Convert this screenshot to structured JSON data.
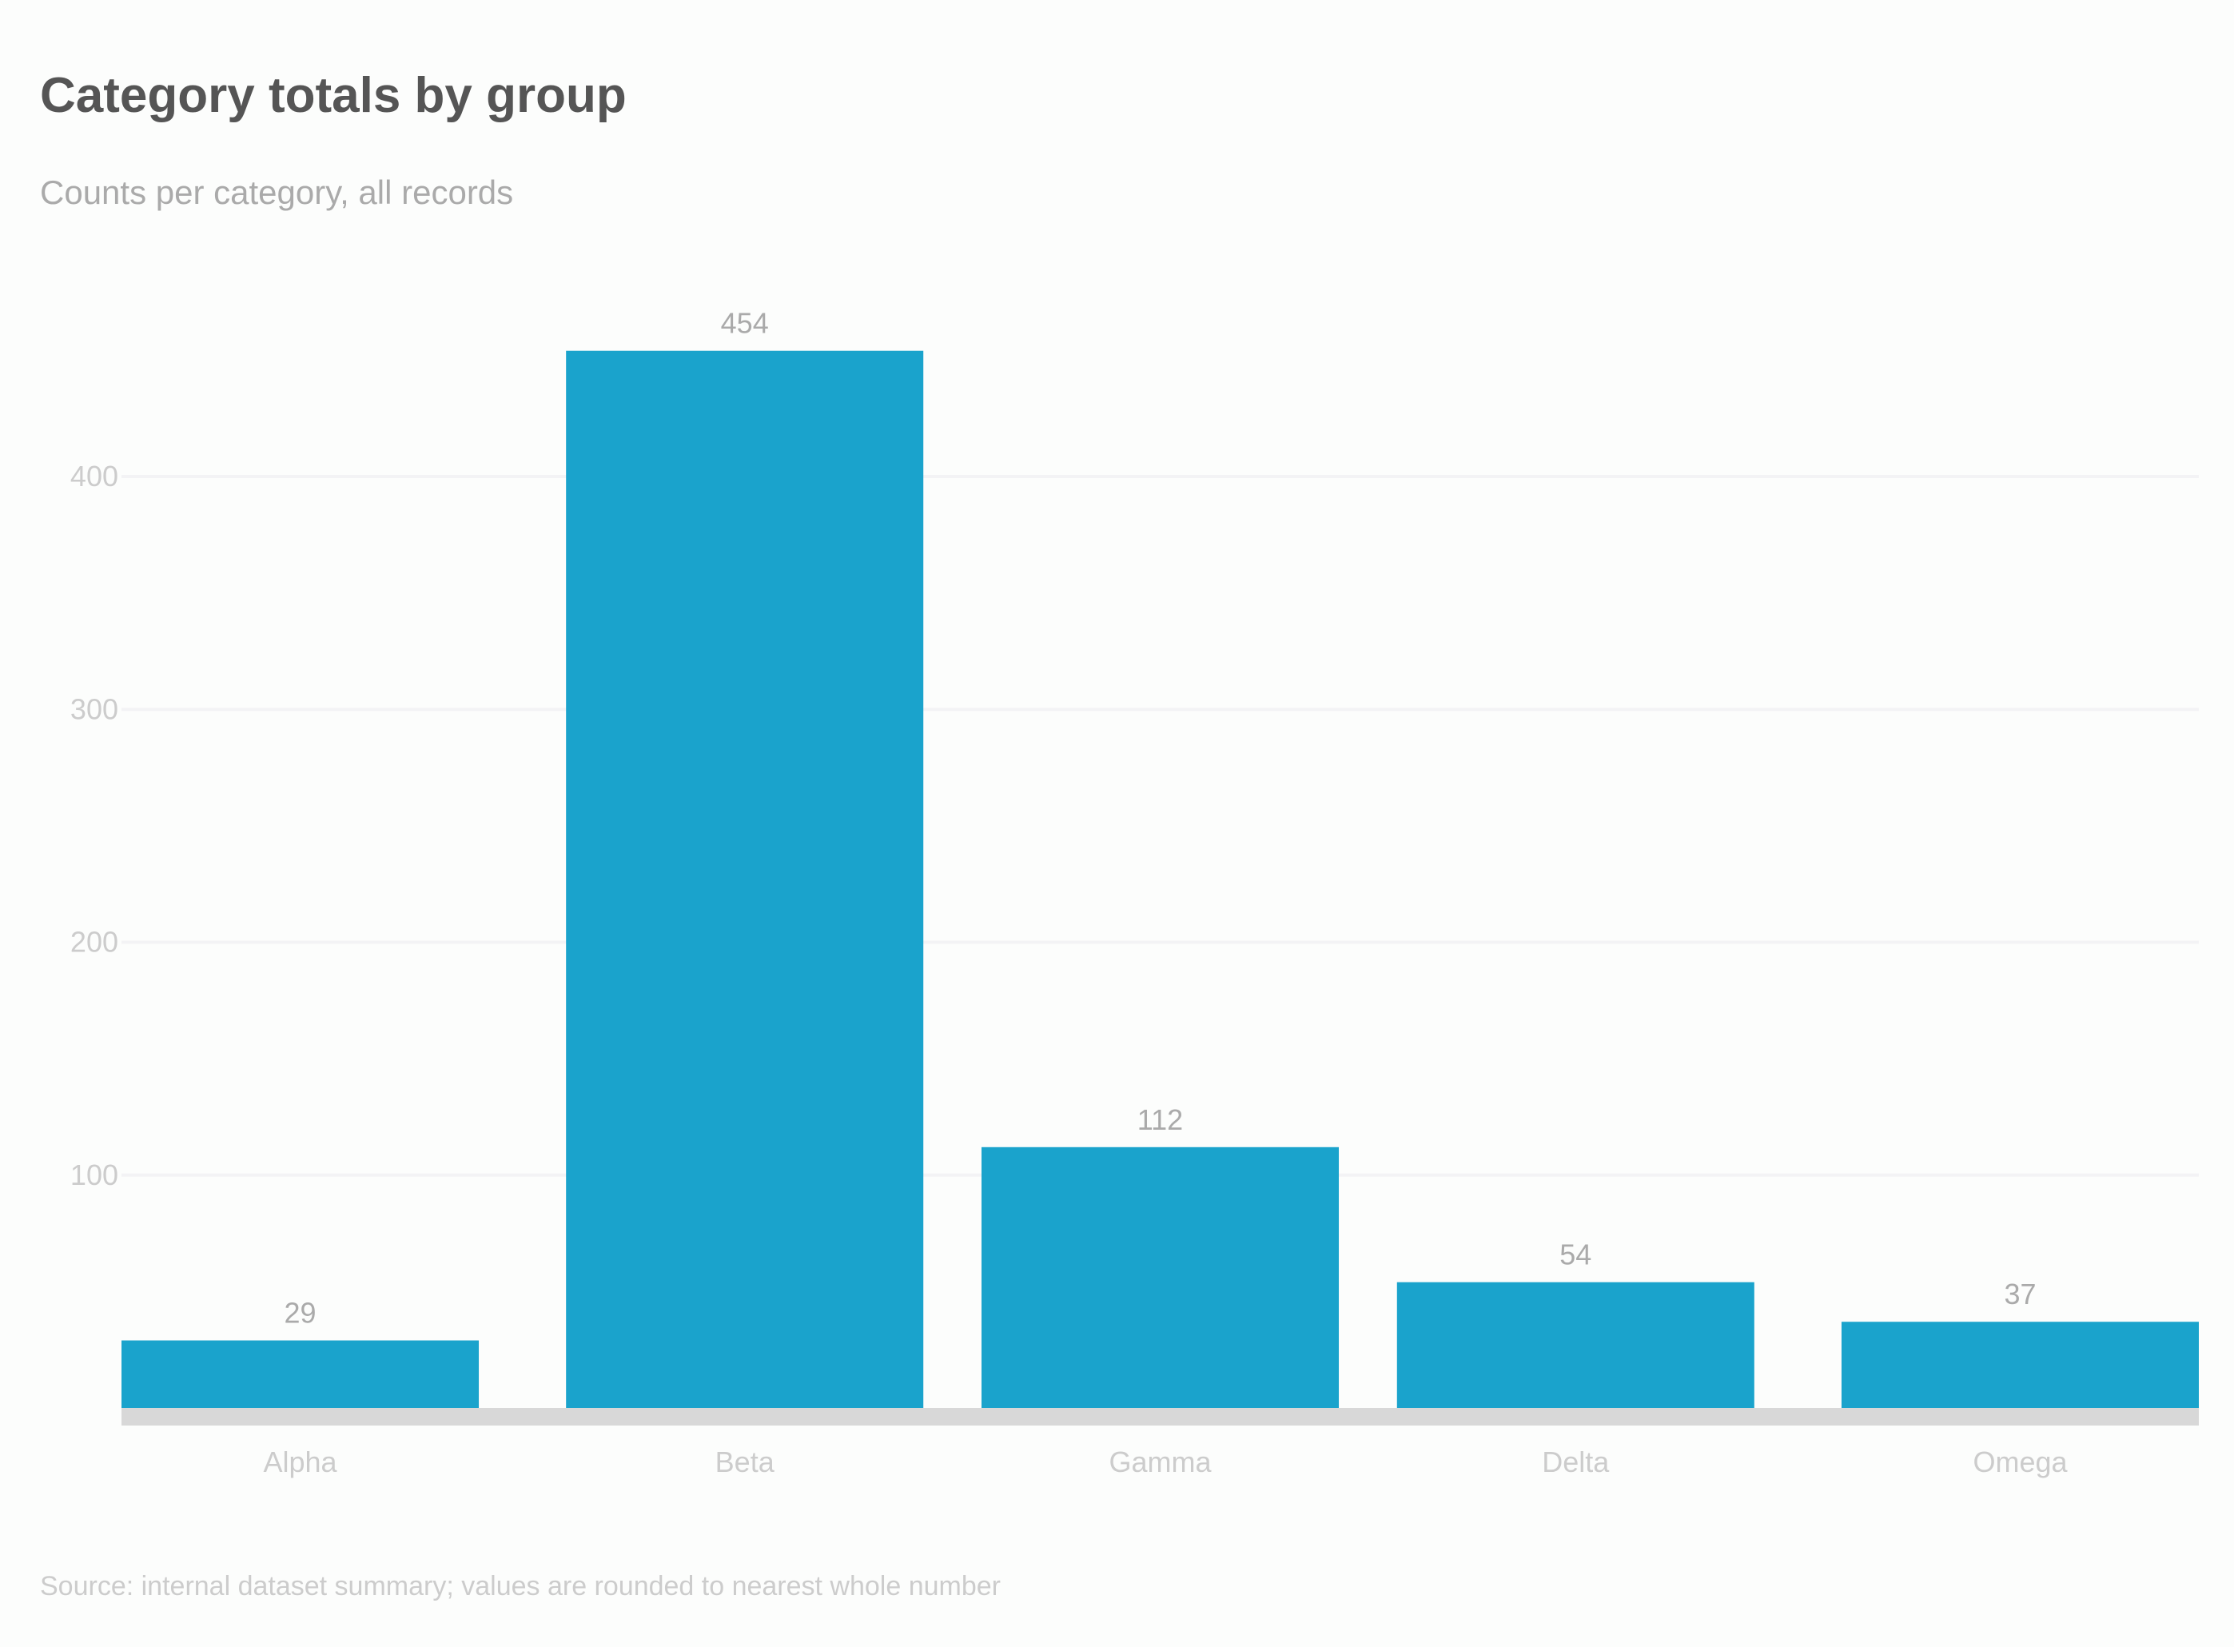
{
  "chart_data": {
    "type": "bar",
    "title": "Category totals by group",
    "subtitle": "Counts per category, all records",
    "categories": [
      "Alpha",
      "Beta",
      "Gamma",
      "Delta",
      "Omega"
    ],
    "values": [
      29,
      454,
      112,
      54,
      37
    ],
    "ylim": [
      0,
      480
    ],
    "yticks": [
      100,
      200,
      300,
      400
    ],
    "grid": true,
    "xlabel": "",
    "ylabel": "",
    "footnote": "Source: internal dataset summary; values are rounded to nearest whole number",
    "bar_color": "#1aa3cc",
    "baseline_color": "#d4d4d4"
  }
}
